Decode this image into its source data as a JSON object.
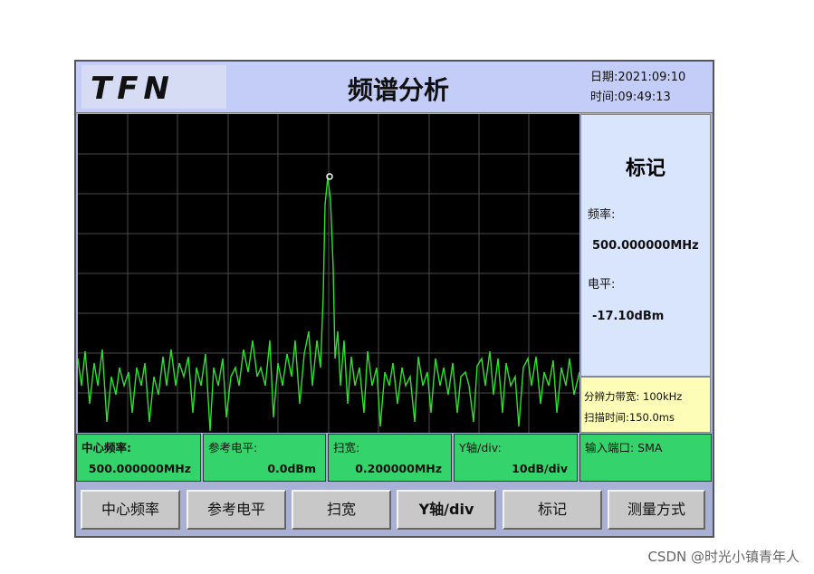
{
  "header": {
    "logo": "TFN",
    "title": "频谱分析",
    "date": "日期:2021:09:10",
    "time": "时间:09:49:13"
  },
  "marker_panel": {
    "title": "标记",
    "freq_label": "频率:",
    "freq_value": "500.000000MHz",
    "level_label": "电平:",
    "level_value": "-17.10dBm"
  },
  "info": {
    "rbw": "分辨力带宽: 100kHz",
    "sweep": "扫描时间:150.0ms"
  },
  "params": [
    {
      "label": "中心频率:",
      "value": "500.000000MHz"
    },
    {
      "label": "参考电平:",
      "value": "0.0dBm"
    },
    {
      "label": "扫宽:",
      "value": "0.200000MHz"
    },
    {
      "label": "Y轴/div:",
      "value": "10dB/div"
    },
    {
      "label": "输入端口: SMA"
    }
  ],
  "buttons": [
    "中心频率",
    "参考电平",
    "扫宽",
    "Y轴/div",
    "标记",
    "测量方式"
  ],
  "watermark": "CSDN @时光小镇青年人"
}
